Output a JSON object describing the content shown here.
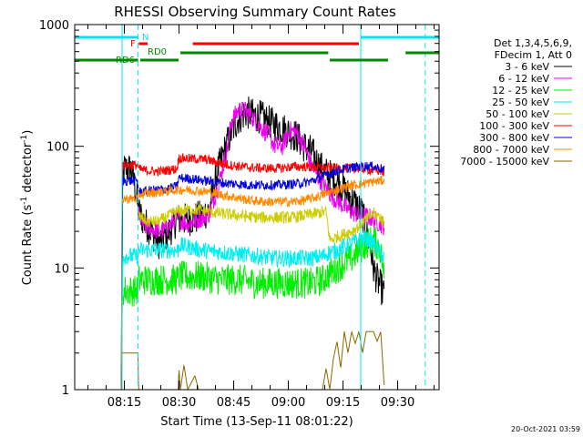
{
  "chart_data": {
    "type": "line",
    "title": "RHESSI Observing Summary Count Rates",
    "xlabel": "Start Time (13-Sep-11 08:01:22)",
    "ylabel_main": "Count Rate (s",
    "ylabel_sup1": "-1",
    "ylabel_mid": " detector",
    "ylabel_sup2": "-1",
    "ylabel_end": ")",
    "y_scale": "log",
    "ylim": [
      1,
      1000
    ],
    "y_ticks": [
      {
        "value": 1,
        "label": "1"
      },
      {
        "value": 10,
        "label": "10"
      },
      {
        "value": 100,
        "label": "100"
      },
      {
        "value": 1000,
        "label": "1000"
      }
    ],
    "xlim_minutes": [
      0,
      100
    ],
    "x_ticks": [
      {
        "minutes": 13.63,
        "label": "08:15"
      },
      {
        "minutes": 28.63,
        "label": "08:30"
      },
      {
        "minutes": 43.63,
        "label": "08:45"
      },
      {
        "minutes": 58.63,
        "label": "09:00"
      },
      {
        "minutes": 73.63,
        "label": "09:15"
      },
      {
        "minutes": 88.63,
        "label": "09:30"
      }
    ],
    "vertical_lines": [
      {
        "minutes": 13.0,
        "style": "solid",
        "color": "#00e5ee"
      },
      {
        "minutes": 17.4,
        "style": "dashed",
        "color": "#00e5ee"
      },
      {
        "minutes": 78.5,
        "style": "solid",
        "color": "#00e5ee"
      },
      {
        "minutes": 96.2,
        "style": "dashed",
        "color": "#00e5ee"
      }
    ],
    "flag_bars": [
      {
        "label": "N",
        "color": "#00e5ee",
        "segments": [
          [
            0,
            17.4
          ],
          [
            78.5,
            100
          ]
        ]
      },
      {
        "label": "F",
        "color": "#ff0000",
        "segments": [
          [
            17.6,
            20.0
          ],
          [
            32.4,
            78.0
          ]
        ]
      },
      {
        "label": "RD0",
        "color": "#008800",
        "segments": [
          [
            29.0,
            69.6
          ],
          [
            90.8,
            100
          ]
        ]
      },
      {
        "label": "RD6",
        "color": "#008800",
        "segments": [
          [
            0,
            17.4
          ],
          [
            18.0,
            28.5
          ],
          [
            70.0,
            86.0
          ]
        ]
      }
    ],
    "legend": {
      "header": [
        "Det 1,3,4,5,6,9,",
        "FDecim 1, Att 0"
      ],
      "entries": [
        {
          "label": "3 - 6 keV",
          "color": "#000000"
        },
        {
          "label": "6 - 12 keV",
          "color": "#ee00ee"
        },
        {
          "label": "12 - 25 keV",
          "color": "#00ee00"
        },
        {
          "label": "25 - 50 keV",
          "color": "#00eeee"
        },
        {
          "label": "50 - 100 keV",
          "color": "#cccc00"
        },
        {
          "label": "100 - 300 keV",
          "color": "#ff0000"
        },
        {
          "label": "300 - 800 keV",
          "color": "#0000dd"
        },
        {
          "label": "800 - 7000 keV",
          "color": "#ff8800"
        },
        {
          "label": "7000 - 15000 keV",
          "color": "#886600"
        }
      ]
    },
    "series": [
      {
        "name": "3 - 6 keV",
        "color": "#000000",
        "noise": 0.14,
        "points": [
          [
            12.8,
            1
          ],
          [
            13.0,
            3
          ],
          [
            13.2,
            65
          ],
          [
            15.6,
            65
          ],
          [
            17.0,
            40
          ],
          [
            17.4,
            30
          ],
          [
            19,
            24
          ],
          [
            21,
            20
          ],
          [
            23,
            16
          ],
          [
            26,
            20
          ],
          [
            28,
            25
          ],
          [
            31,
            25
          ],
          [
            34,
            26
          ],
          [
            37,
            30
          ],
          [
            39,
            60
          ],
          [
            41,
            90
          ],
          [
            43,
            130
          ],
          [
            45,
            170
          ],
          [
            47,
            190
          ],
          [
            49,
            180
          ],
          [
            51,
            175
          ],
          [
            53,
            160
          ],
          [
            55,
            150
          ],
          [
            57,
            140
          ],
          [
            59,
            130
          ],
          [
            61,
            120
          ],
          [
            63,
            100
          ],
          [
            65,
            90
          ],
          [
            67,
            70
          ],
          [
            69,
            60
          ],
          [
            71,
            55
          ],
          [
            73,
            48
          ],
          [
            75,
            40
          ],
          [
            77,
            34
          ],
          [
            79,
            28
          ],
          [
            80,
            20
          ],
          [
            81,
            16
          ],
          [
            82,
            10
          ],
          [
            83,
            8
          ],
          [
            84,
            7
          ],
          [
            85,
            6
          ]
        ]
      },
      {
        "name": "6 - 12 keV",
        "color": "#ee00ee",
        "noise": 0.08,
        "points": [
          [
            17.4,
            28
          ],
          [
            19,
            22
          ],
          [
            21,
            21
          ],
          [
            24,
            20
          ],
          [
            26,
            22
          ],
          [
            28,
            26
          ],
          [
            31,
            23
          ],
          [
            34,
            25
          ],
          [
            37,
            28
          ],
          [
            40,
            55
          ],
          [
            42,
            100
          ],
          [
            43,
            160
          ],
          [
            45,
            200
          ],
          [
            47,
            195
          ],
          [
            49,
            170
          ],
          [
            51,
            145
          ],
          [
            53,
            125
          ],
          [
            55,
            100
          ],
          [
            57,
            100
          ],
          [
            59,
            135
          ],
          [
            61,
            130
          ],
          [
            63,
            100
          ],
          [
            65,
            70
          ],
          [
            67,
            55
          ],
          [
            69,
            45
          ],
          [
            71,
            38
          ],
          [
            73,
            34
          ],
          [
            75,
            30
          ],
          [
            77,
            28
          ],
          [
            79,
            27
          ],
          [
            81,
            26
          ],
          [
            83,
            24
          ],
          [
            84,
            23
          ],
          [
            85,
            22
          ]
        ]
      },
      {
        "name": "12 - 25 keV",
        "color": "#00ee00",
        "noise": 0.13,
        "points": [
          [
            12.8,
            1
          ],
          [
            13.0,
            5
          ],
          [
            13.2,
            6.5
          ],
          [
            17.4,
            6.5
          ],
          [
            17.5,
            8
          ],
          [
            28.4,
            8
          ],
          [
            28.6,
            8.5
          ],
          [
            35,
            8.5
          ],
          [
            40,
            8
          ],
          [
            45,
            8
          ],
          [
            50,
            7.5
          ],
          [
            55,
            7.5
          ],
          [
            60,
            7.5
          ],
          [
            65,
            7.5
          ],
          [
            68,
            8
          ],
          [
            70,
            9
          ],
          [
            72,
            10
          ],
          [
            74,
            11
          ],
          [
            76,
            12
          ],
          [
            78,
            14
          ],
          [
            80,
            16
          ],
          [
            82,
            17
          ],
          [
            84,
            14
          ],
          [
            85,
            8
          ]
        ]
      },
      {
        "name": "25 - 50 keV",
        "color": "#00eeee",
        "noise": 0.07,
        "points": [
          [
            12.8,
            1
          ],
          [
            13.0,
            4
          ],
          [
            13.2,
            12.5
          ],
          [
            15.6,
            12.5
          ],
          [
            17.4,
            12.5
          ],
          [
            17.5,
            14
          ],
          [
            28.4,
            14
          ],
          [
            28.6,
            15.5
          ],
          [
            35,
            14
          ],
          [
            40,
            13.5
          ],
          [
            45,
            13
          ],
          [
            50,
            12.5
          ],
          [
            55,
            12
          ],
          [
            60,
            12
          ],
          [
            65,
            12
          ],
          [
            68,
            12.5
          ],
          [
            70,
            13.5
          ],
          [
            72,
            14
          ],
          [
            74,
            15
          ],
          [
            76,
            16
          ],
          [
            78,
            17
          ],
          [
            80,
            17.5
          ],
          [
            82,
            16
          ],
          [
            84,
            13
          ],
          [
            85,
            12
          ]
        ]
      },
      {
        "name": "50 - 100 keV",
        "color": "#cccc00",
        "noise": 0.05,
        "points": [
          [
            17.4,
            27
          ],
          [
            20,
            24
          ],
          [
            23,
            24
          ],
          [
            26,
            27
          ],
          [
            28,
            29
          ],
          [
            31,
            30
          ],
          [
            34,
            30
          ],
          [
            37,
            29
          ],
          [
            40,
            28
          ],
          [
            45,
            27
          ],
          [
            50,
            26
          ],
          [
            55,
            26
          ],
          [
            60,
            26
          ],
          [
            63,
            27
          ],
          [
            66,
            28
          ],
          [
            69,
            29
          ],
          [
            70,
            17
          ],
          [
            72,
            18
          ],
          [
            74,
            19
          ],
          [
            76,
            20
          ],
          [
            78,
            22
          ],
          [
            80,
            25
          ],
          [
            82,
            28
          ],
          [
            84,
            26
          ],
          [
            85,
            23
          ]
        ]
      },
      {
        "name": "100 - 300 keV",
        "color": "#ff0000",
        "noise": 0.04,
        "points": [
          [
            12.8,
            1
          ],
          [
            13.0,
            50
          ],
          [
            13.2,
            70
          ],
          [
            17.4,
            70
          ],
          [
            17.5,
            65
          ],
          [
            20,
            63
          ],
          [
            23,
            62
          ],
          [
            26,
            64
          ],
          [
            28,
            65
          ],
          [
            28.6,
            80
          ],
          [
            32,
            79
          ],
          [
            36,
            78
          ],
          [
            40,
            72
          ],
          [
            44,
            69
          ],
          [
            48,
            67
          ],
          [
            52,
            66
          ],
          [
            56,
            66
          ],
          [
            60,
            68
          ],
          [
            63,
            68
          ],
          [
            65,
            67
          ],
          [
            68,
            67
          ],
          [
            72,
            66
          ],
          [
            76,
            66
          ],
          [
            80,
            65
          ],
          [
            82,
            63
          ],
          [
            84,
            63
          ],
          [
            85,
            60
          ]
        ]
      },
      {
        "name": "300 - 800 keV",
        "color": "#0000dd",
        "noise": 0.04,
        "points": [
          [
            12.8,
            1
          ],
          [
            13.0,
            40
          ],
          [
            13.2,
            52
          ],
          [
            17.4,
            52
          ],
          [
            17.5,
            42
          ],
          [
            20,
            43
          ],
          [
            23,
            44
          ],
          [
            26,
            45
          ],
          [
            28,
            47
          ],
          [
            28.6,
            55
          ],
          [
            32,
            54
          ],
          [
            36,
            52
          ],
          [
            40,
            50
          ],
          [
            44,
            49
          ],
          [
            48,
            48
          ],
          [
            52,
            48
          ],
          [
            56,
            48
          ],
          [
            60,
            49
          ],
          [
            63,
            50
          ],
          [
            66,
            53
          ],
          [
            69,
            58
          ],
          [
            72,
            63
          ],
          [
            75,
            66
          ],
          [
            78,
            68
          ],
          [
            80,
            69
          ],
          [
            82,
            68
          ],
          [
            84,
            66
          ],
          [
            85,
            63
          ]
        ]
      },
      {
        "name": "800 - 7000 keV",
        "color": "#ff8800",
        "noise": 0.04,
        "points": [
          [
            12.8,
            1
          ],
          [
            13.0,
            30
          ],
          [
            13.2,
            37
          ],
          [
            17.4,
            37
          ],
          [
            17.5,
            40
          ],
          [
            20,
            41
          ],
          [
            23,
            42
          ],
          [
            26,
            43
          ],
          [
            28,
            44
          ],
          [
            31,
            44
          ],
          [
            34,
            43
          ],
          [
            37,
            42
          ],
          [
            40,
            40
          ],
          [
            44,
            38
          ],
          [
            48,
            36
          ],
          [
            52,
            35
          ],
          [
            56,
            35
          ],
          [
            60,
            35
          ],
          [
            63,
            36
          ],
          [
            66,
            38
          ],
          [
            69,
            41
          ],
          [
            72,
            44
          ],
          [
            75,
            47
          ],
          [
            78,
            49
          ],
          [
            80,
            50
          ],
          [
            82,
            51
          ],
          [
            84,
            52
          ],
          [
            85,
            53
          ]
        ]
      },
      {
        "name": "7000 - 15000 keV",
        "color": "#886600",
        "noise": 0.0,
        "points": [
          [
            12.8,
            1
          ],
          [
            13.0,
            2
          ],
          [
            13.2,
            2
          ],
          [
            17.4,
            2
          ],
          [
            17.5,
            1
          ],
          [
            28.4,
            1
          ],
          [
            28.6,
            1.5
          ],
          [
            29,
            1
          ],
          [
            30,
            1.6
          ],
          [
            31,
            1
          ],
          [
            33,
            1.3
          ],
          [
            34,
            1
          ],
          [
            40,
            1
          ],
          [
            50,
            1
          ],
          [
            68,
            1
          ],
          [
            69,
            1.5
          ],
          [
            70,
            1
          ],
          [
            71,
            1.8
          ],
          [
            72,
            2.5
          ],
          [
            73,
            1.5
          ],
          [
            74,
            3
          ],
          [
            75,
            2
          ],
          [
            76,
            3
          ],
          [
            77,
            2.4
          ],
          [
            78,
            3
          ],
          [
            79,
            2
          ],
          [
            80,
            3
          ],
          [
            81,
            3
          ],
          [
            82,
            3
          ],
          [
            83,
            2.5
          ],
          [
            84,
            3
          ],
          [
            85,
            1
          ]
        ]
      }
    ]
  },
  "labels": {
    "flag_N": "N",
    "flag_F": "F",
    "flag_RD0": "RD0",
    "flag_RD6": "RD6"
  },
  "timestamp": "20-Oct-2021 03:59"
}
